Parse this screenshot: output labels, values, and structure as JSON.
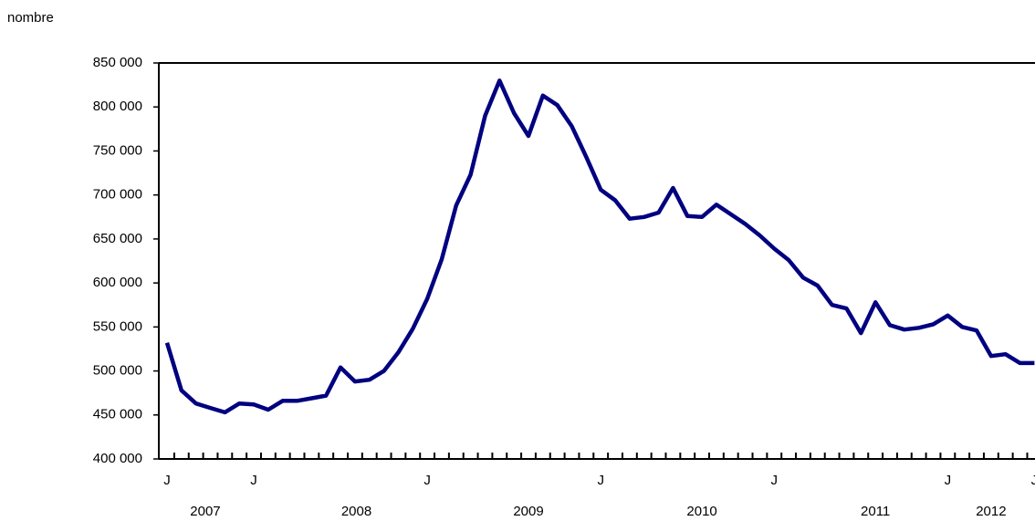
{
  "chart_data": {
    "type": "line",
    "y_label": "nombre",
    "categories": [
      "J",
      null,
      null,
      null,
      null,
      null,
      "J",
      null,
      null,
      null,
      null,
      null,
      null,
      null,
      null,
      null,
      null,
      null,
      "J",
      null,
      null,
      null,
      null,
      null,
      null,
      null,
      null,
      null,
      null,
      null,
      "J",
      null,
      null,
      null,
      null,
      null,
      null,
      null,
      null,
      null,
      null,
      null,
      "J",
      null,
      null,
      null,
      null,
      null,
      null,
      null,
      null,
      null,
      null,
      null,
      "J",
      null,
      null,
      null,
      null,
      null,
      "J"
    ],
    "year_labels": [
      "2007",
      "2008",
      "2009",
      "2010",
      "2011",
      "2012"
    ],
    "series": [
      {
        "color": "#000080",
        "values": [
          532000,
          478000,
          463000,
          458000,
          453000,
          463000,
          462000,
          456000,
          466000,
          466000,
          469000,
          472000,
          504000,
          488000,
          490000,
          500000,
          521000,
          548000,
          582000,
          627000,
          688000,
          723000,
          790000,
          830000,
          793000,
          767000,
          813000,
          802000,
          778000,
          743000,
          706000,
          694000,
          673000,
          675000,
          680000,
          708000,
          676000,
          675000,
          689000,
          678000,
          667000,
          654000,
          639000,
          626000,
          606000,
          597000,
          575000,
          571000,
          543000,
          578000,
          552000,
          547000,
          549000,
          553000,
          563000,
          550000,
          546000,
          517000,
          519000,
          509000,
          509000
        ]
      }
    ],
    "ylim": [
      400000,
      850000
    ],
    "yticks": [
      {
        "value": 400000,
        "label": "400 000"
      },
      {
        "value": 450000,
        "label": "450 000"
      },
      {
        "value": 500000,
        "label": "500 000"
      },
      {
        "value": 550000,
        "label": "550 000"
      },
      {
        "value": 600000,
        "label": "600 000"
      },
      {
        "value": 650000,
        "label": "650 000"
      },
      {
        "value": 700000,
        "label": "700 000"
      },
      {
        "value": 750000,
        "label": "750 000"
      },
      {
        "value": 800000,
        "label": "800 000"
      },
      {
        "value": 850000,
        "label": "850 000"
      }
    ],
    "grid": false
  }
}
